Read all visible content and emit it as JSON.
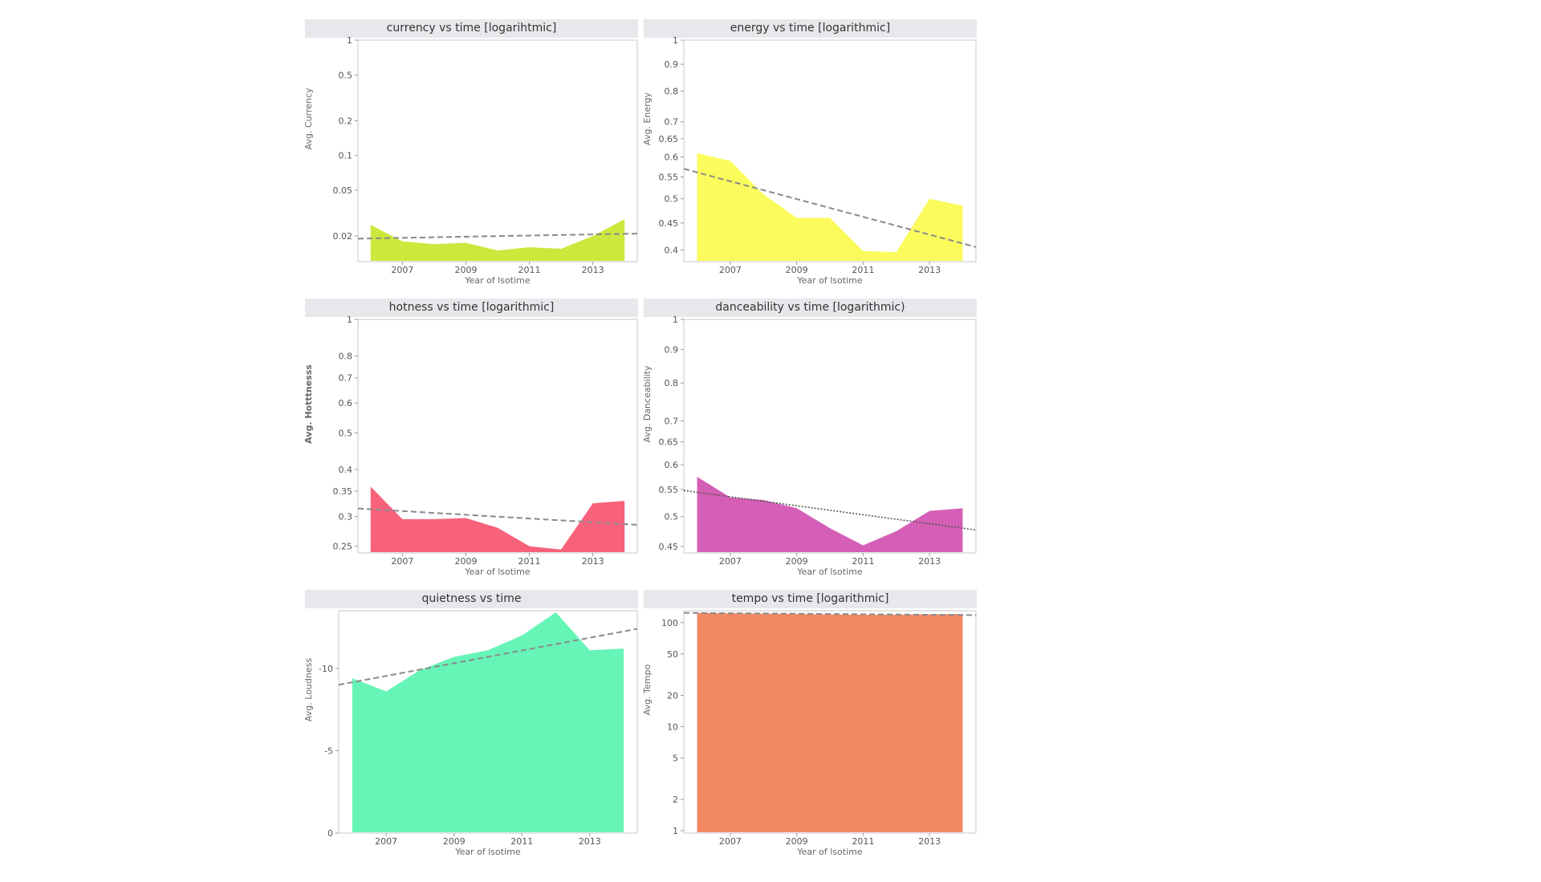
{
  "chart_data": [
    {
      "type": "area",
      "title": "currency vs time [logarihtmic]",
      "xlabel": "Year of lsotime",
      "ylabel": "Avg. Currency",
      "scale": "log",
      "ylim": [
        0.012,
        1
      ],
      "xlim": [
        2005.6,
        2014.4
      ],
      "x": [
        2006,
        2007,
        2008,
        2009,
        2010,
        2011,
        2012,
        2013,
        2014
      ],
      "values": [
        0.025,
        0.018,
        0.017,
        0.0175,
        0.015,
        0.016,
        0.0155,
        0.02,
        0.028
      ],
      "trend": [
        0.019,
        0.021
      ],
      "yticks": [
        {
          "v": 1,
          "label": "1"
        },
        {
          "v": 0.5,
          "label": "0.5"
        },
        {
          "v": 0.2,
          "label": "0.2"
        },
        {
          "v": 0.1,
          "label": "0.1"
        },
        {
          "v": 0.05,
          "label": "0.05"
        },
        {
          "v": 0.02,
          "label": "0.02"
        }
      ],
      "xticks": [
        {
          "v": 2007,
          "label": "2007"
        },
        {
          "v": 2009,
          "label": "2009"
        },
        {
          "v": 2011,
          "label": "2011"
        },
        {
          "v": 2013,
          "label": "2013"
        }
      ],
      "color": "#cbe83d",
      "trend_style": "dashed",
      "grid": false
    },
    {
      "type": "area",
      "title": "energy vs time [logarithmic]",
      "xlabel": "Year of lsotime",
      "ylabel": "Avg. Energy",
      "scale": "log",
      "ylim": [
        0.38,
        1
      ],
      "xlim": [
        2005.6,
        2014.4
      ],
      "x": [
        2006,
        2007,
        2008,
        2009,
        2010,
        2011,
        2012,
        2013,
        2014
      ],
      "values": [
        0.61,
        0.59,
        0.51,
        0.46,
        0.46,
        0.398,
        0.396,
        0.5,
        0.485
      ],
      "trend": [
        0.57,
        0.405
      ],
      "yticks": [
        {
          "v": 1,
          "label": "1"
        },
        {
          "v": 0.9,
          "label": "0.9"
        },
        {
          "v": 0.8,
          "label": "0.8"
        },
        {
          "v": 0.7,
          "label": "0.7"
        },
        {
          "v": 0.65,
          "label": "0.65"
        },
        {
          "v": 0.6,
          "label": "0.6"
        },
        {
          "v": 0.55,
          "label": "0.55"
        },
        {
          "v": 0.5,
          "label": "0.5"
        },
        {
          "v": 0.45,
          "label": "0.45"
        },
        {
          "v": 0.4,
          "label": "0.4"
        }
      ],
      "xticks": [
        {
          "v": 2007,
          "label": "2007"
        },
        {
          "v": 2009,
          "label": "2009"
        },
        {
          "v": 2011,
          "label": "2011"
        },
        {
          "v": 2013,
          "label": "2013"
        }
      ],
      "color": "#fbfb5c",
      "trend_style": "dashed",
      "grid": false
    },
    {
      "type": "area",
      "title": "hotness vs time [logarithmic]",
      "xlabel": "Year of lsotime",
      "ylabel": "Avg. Hotttnesss",
      "scale": "log",
      "ylim": [
        0.24,
        1
      ],
      "xlim": [
        2005.6,
        2014.4
      ],
      "x": [
        2006,
        2007,
        2008,
        2009,
        2010,
        2011,
        2012,
        2013,
        2014
      ],
      "values": [
        0.36,
        0.295,
        0.295,
        0.297,
        0.28,
        0.25,
        0.245,
        0.325,
        0.33
      ],
      "trend": [
        0.315,
        0.285
      ],
      "yticks": [
        {
          "v": 1,
          "label": "1"
        },
        {
          "v": 0.8,
          "label": "0.8"
        },
        {
          "v": 0.7,
          "label": "0.7"
        },
        {
          "v": 0.6,
          "label": "0.6"
        },
        {
          "v": 0.5,
          "label": "0.5"
        },
        {
          "v": 0.4,
          "label": "0.4"
        },
        {
          "v": 0.35,
          "label": "0.35"
        },
        {
          "v": 0.3,
          "label": "0.3"
        },
        {
          "v": 0.25,
          "label": "0.25"
        }
      ],
      "xticks": [
        {
          "v": 2007,
          "label": "2007"
        },
        {
          "v": 2009,
          "label": "2009"
        },
        {
          "v": 2011,
          "label": "2011"
        },
        {
          "v": 2013,
          "label": "2013"
        }
      ],
      "color": "#f8617a",
      "trend_style": "dashed",
      "grid": false
    },
    {
      "type": "area",
      "title": "danceability vs time [logarithmic)",
      "xlabel": "Year of lsotime",
      "ylabel": "Avg. Danceability",
      "scale": "log",
      "ylim": [
        0.44,
        1
      ],
      "xlim": [
        2005.6,
        2014.4
      ],
      "x": [
        2006,
        2007,
        2008,
        2009,
        2010,
        2011,
        2012,
        2013,
        2014
      ],
      "values": [
        0.575,
        0.535,
        0.53,
        0.515,
        0.48,
        0.452,
        0.475,
        0.51,
        0.515
      ],
      "trend": [
        0.548,
        0.477
      ],
      "yticks": [
        {
          "v": 1,
          "label": "1"
        },
        {
          "v": 0.9,
          "label": "0.9"
        },
        {
          "v": 0.8,
          "label": "0.8"
        },
        {
          "v": 0.7,
          "label": "0.7"
        },
        {
          "v": 0.65,
          "label": "0.65"
        },
        {
          "v": 0.6,
          "label": "0.6"
        },
        {
          "v": 0.55,
          "label": "0.55"
        },
        {
          "v": 0.5,
          "label": "0.5"
        },
        {
          "v": 0.45,
          "label": "0.45"
        }
      ],
      "xticks": [
        {
          "v": 2007,
          "label": "2007"
        },
        {
          "v": 2009,
          "label": "2009"
        },
        {
          "v": 2011,
          "label": "2011"
        },
        {
          "v": 2013,
          "label": "2013"
        }
      ],
      "color": "#d55fb7",
      "trend_style": "dotted",
      "grid": false
    },
    {
      "type": "area",
      "title": "quietness vs time",
      "xlabel": "Year of lsotime",
      "ylabel": "Avg. Loudness",
      "scale": "linear",
      "ylim": [
        0,
        13.5
      ],
      "xlim": [
        2005.6,
        2014.4
      ],
      "x": [
        2006,
        2007,
        2008,
        2009,
        2010,
        2011,
        2012,
        2013,
        2014
      ],
      "values": [
        9.4,
        8.6,
        9.9,
        10.7,
        11.1,
        12.0,
        13.4,
        11.1,
        11.2
      ],
      "trend": [
        9.0,
        12.4
      ],
      "yticks": [
        {
          "v": 10,
          "label": "-10"
        },
        {
          "v": 5,
          "label": "-5"
        },
        {
          "v": 0,
          "label": "0"
        }
      ],
      "xticks": [
        {
          "v": 2007,
          "label": "2007"
        },
        {
          "v": 2009,
          "label": "2009"
        },
        {
          "v": 2011,
          "label": "2011"
        },
        {
          "v": 2013,
          "label": "2013"
        }
      ],
      "color": "#66f5b6",
      "trend_style": "dashed",
      "grid": false
    },
    {
      "type": "area",
      "title": "tempo vs time [logarithmic]",
      "xlabel": "Year of lsotime",
      "ylabel": "Avg. Tempo",
      "scale": "log",
      "ylim": [
        0.95,
        130
      ],
      "xlim": [
        2005.6,
        2014.4
      ],
      "x": [
        2006,
        2007,
        2008,
        2009,
        2010,
        2011,
        2012,
        2013,
        2014
      ],
      "values": [
        124,
        123,
        122,
        121,
        120,
        119,
        119,
        120,
        121
      ],
      "trend": [
        124,
        118
      ],
      "yticks": [
        {
          "v": 100,
          "label": "100"
        },
        {
          "v": 50,
          "label": "50"
        },
        {
          "v": 20,
          "label": "20"
        },
        {
          "v": 10,
          "label": "10"
        },
        {
          "v": 5,
          "label": "5"
        },
        {
          "v": 2,
          "label": "2"
        },
        {
          "v": 1,
          "label": "1"
        }
      ],
      "xticks": [
        {
          "v": 2007,
          "label": "2007"
        },
        {
          "v": 2009,
          "label": "2009"
        },
        {
          "v": 2011,
          "label": "2011"
        },
        {
          "v": 2013,
          "label": "2013"
        }
      ],
      "color": "#f28963",
      "trend_style": "dashed",
      "grid": false
    }
  ]
}
